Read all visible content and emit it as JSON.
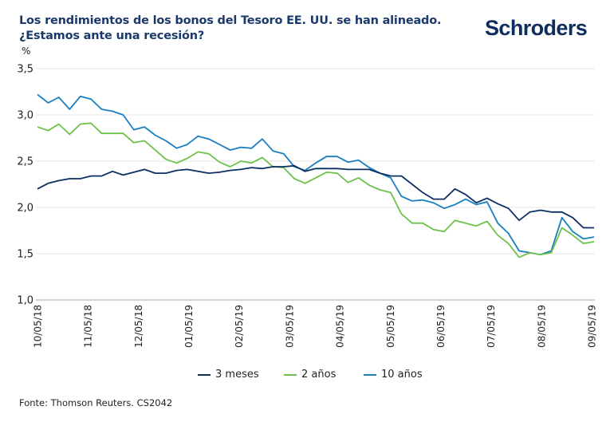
{
  "header": {
    "title_line1": "Los rendimientos de los bonos del Tesoro EE. UU. se han alineado.",
    "title_line2": "¿Estamos ante una recesión?",
    "logo_text": "Schroders",
    "brand_color": "#0f2d5c"
  },
  "footer": {
    "source": "Fonte: Thomson Reuters. CS2042"
  },
  "chart_data": {
    "type": "line",
    "title": "Los rendimientos de los bonos del Tesoro EE. UU. se han alineado. ¿Estamos ante una recesión?",
    "ylabel": "%",
    "xlabel": "",
    "ylim": [
      1.0,
      3.5
    ],
    "yticks": [
      1.0,
      1.5,
      2.0,
      2.5,
      3.0,
      3.5
    ],
    "ytick_labels": [
      "1,0",
      "1,5",
      "2,0",
      "2,5",
      "3,0",
      "3,5"
    ],
    "xtick_labels": [
      "10/05/18",
      "11/05/18",
      "12/05/18",
      "01/05/19",
      "02/05/19",
      "03/05/19",
      "04/05/19",
      "05/05/19",
      "06/05/19",
      "07/05/19",
      "08/05/19",
      "09/05/19"
    ],
    "grid": true,
    "legend_position": "bottom",
    "n_points": 53,
    "series": [
      {
        "name": "3 meses",
        "color": "#0b2f63",
        "values": [
          2.2,
          2.26,
          2.29,
          2.31,
          2.31,
          2.34,
          2.34,
          2.39,
          2.35,
          2.38,
          2.41,
          2.37,
          2.37,
          2.4,
          2.41,
          2.39,
          2.37,
          2.38,
          2.4,
          2.41,
          2.43,
          2.42,
          2.44,
          2.44,
          2.45,
          2.39,
          2.42,
          2.42,
          2.42,
          2.41,
          2.41,
          2.41,
          2.37,
          2.34,
          2.34,
          2.25,
          2.16,
          2.09,
          2.09,
          2.2,
          2.14,
          2.05,
          2.1,
          2.04,
          1.99,
          1.86,
          1.95,
          1.97,
          1.95,
          1.95,
          1.89,
          1.78,
          1.78
        ]
      },
      {
        "name": "2 años",
        "color": "#6cc24a",
        "values": [
          2.87,
          2.83,
          2.9,
          2.79,
          2.9,
          2.91,
          2.8,
          2.8,
          2.8,
          2.7,
          2.72,
          2.62,
          2.52,
          2.48,
          2.53,
          2.6,
          2.58,
          2.49,
          2.44,
          2.5,
          2.48,
          2.54,
          2.44,
          2.43,
          2.31,
          2.26,
          2.32,
          2.38,
          2.37,
          2.27,
          2.32,
          2.24,
          2.19,
          2.16,
          1.93,
          1.83,
          1.83,
          1.76,
          1.74,
          1.86,
          1.83,
          1.8,
          1.85,
          1.7,
          1.61,
          1.46,
          1.51,
          1.49,
          1.51,
          1.78,
          1.7,
          1.61,
          1.63
        ]
      },
      {
        "name": "10 años",
        "color": "#1a7fc1",
        "values": [
          3.22,
          3.13,
          3.19,
          3.06,
          3.2,
          3.17,
          3.06,
          3.04,
          3.0,
          2.84,
          2.87,
          2.78,
          2.72,
          2.64,
          2.68,
          2.77,
          2.74,
          2.68,
          2.62,
          2.65,
          2.64,
          2.74,
          2.61,
          2.58,
          2.44,
          2.4,
          2.48,
          2.55,
          2.55,
          2.49,
          2.51,
          2.43,
          2.37,
          2.32,
          2.12,
          2.07,
          2.08,
          2.05,
          1.99,
          2.03,
          2.09,
          2.03,
          2.06,
          1.83,
          1.72,
          1.53,
          1.51,
          1.49,
          1.53,
          1.89,
          1.74,
          1.66,
          1.68
        ]
      }
    ]
  }
}
